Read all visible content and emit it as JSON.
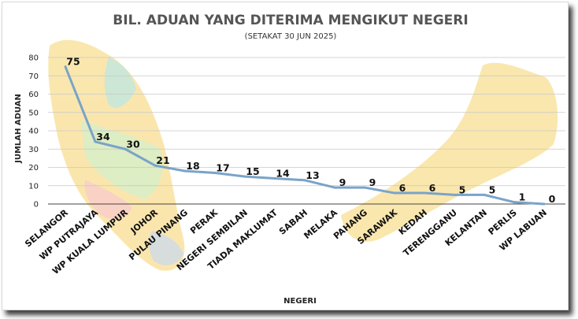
{
  "chart_data": {
    "type": "line",
    "title": "BIL. ADUAN YANG DITERIMA MENGIKUT NEGERI",
    "subtitle": "(SETAKAT 30  JUN 2025)",
    "xlabel": "NEGERI",
    "ylabel": "JUMLAH ADUAN",
    "ylim": [
      0,
      80
    ],
    "yticks": [
      "0",
      "10",
      "20",
      "30",
      "40",
      "50",
      "60",
      "70",
      "80"
    ],
    "grid": true,
    "legend": "none",
    "series_color": "#7aa3c9",
    "categories": [
      "SELANGOR",
      "WP PUTRAJAYA",
      "WP KUALA LUMPUR",
      "JOHOR",
      "PULAU PINANG",
      "PERAK",
      "NEGERI SEMBILAN",
      "TIADA MAKLUMAT",
      "SABAH",
      "MELAKA",
      "PAHANG",
      "SARAWAK",
      "KEDAH",
      "TERENGGANU",
      "KELANTAN",
      "PERLIS",
      "WP LABUAN"
    ],
    "values": [
      75,
      34,
      30,
      21,
      18,
      17,
      15,
      14,
      13,
      9,
      9,
      6,
      6,
      5,
      5,
      1,
      0
    ],
    "data_labels": [
      "75",
      "34",
      "30",
      "21",
      "18",
      "17",
      "15",
      "14",
      "13",
      "9",
      "9",
      "6",
      "6",
      "5",
      "5",
      "1",
      "0"
    ]
  }
}
